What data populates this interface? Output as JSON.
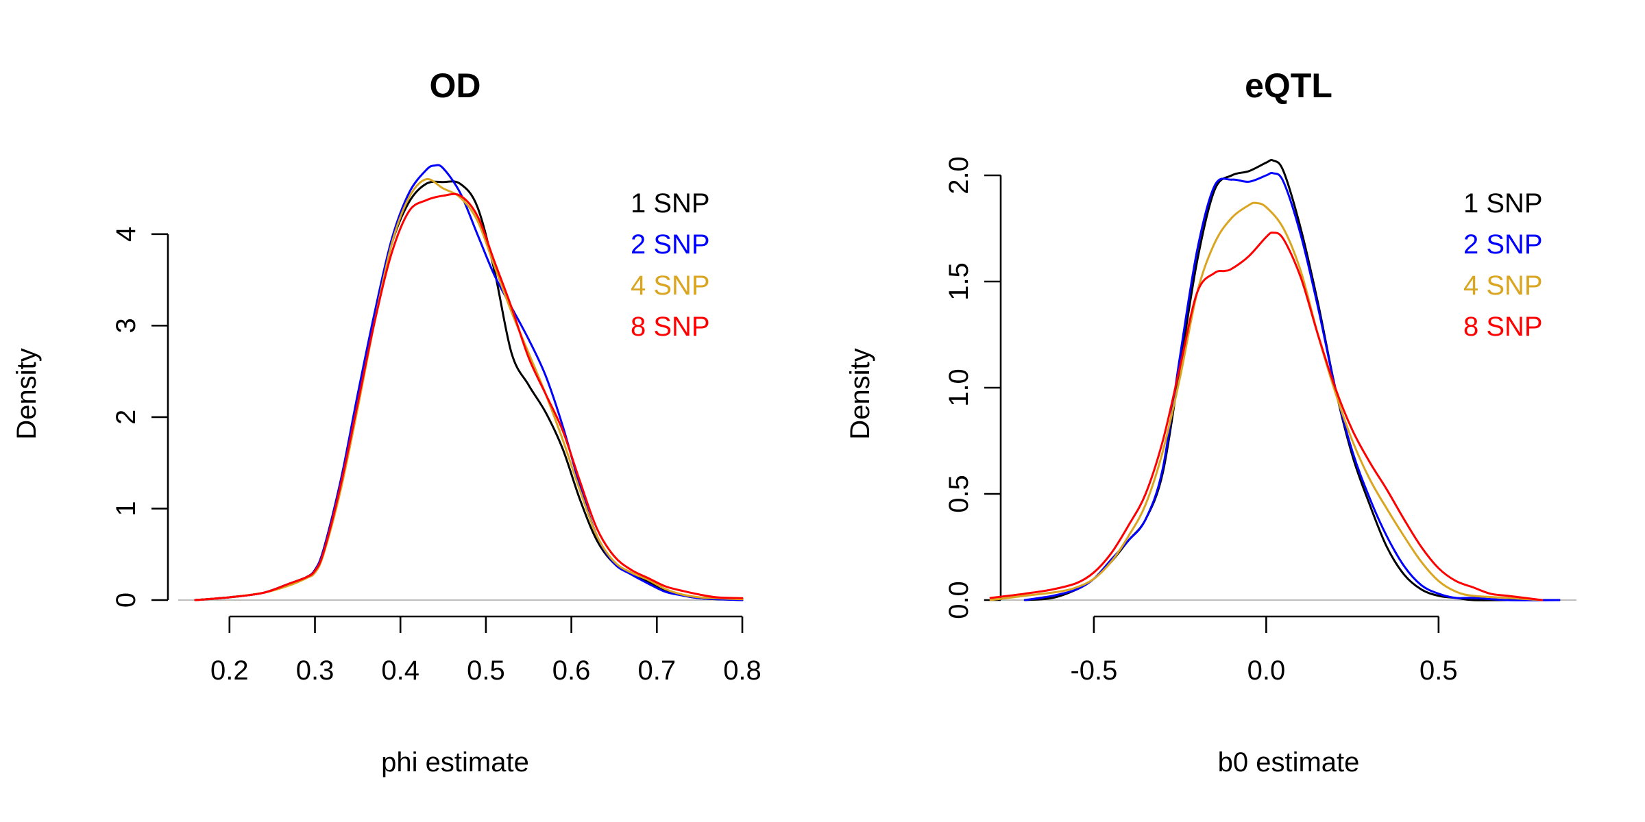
{
  "chart_data": [
    {
      "type": "line",
      "title": "OD",
      "xlabel": "phi estimate",
      "ylabel": "Density",
      "xlim": [
        0.14,
        0.8
      ],
      "ylim": [
        0,
        4.8
      ],
      "xticks": [
        0.2,
        0.3,
        0.4,
        0.5,
        0.6,
        0.7,
        0.8
      ],
      "xtick_labels": [
        "0.2",
        "0.3",
        "0.4",
        "0.5",
        "0.6",
        "0.7",
        "0.8"
      ],
      "yticks": [
        0,
        1,
        2,
        3,
        4
      ],
      "ytick_labels": [
        "0",
        "1",
        "2",
        "3",
        "4"
      ],
      "grid": false,
      "legend_position": "top-right",
      "series": [
        {
          "name": "1 SNP",
          "color": "#000000",
          "x": [
            0.16,
            0.2,
            0.24,
            0.27,
            0.29,
            0.3,
            0.31,
            0.33,
            0.35,
            0.37,
            0.39,
            0.41,
            0.43,
            0.45,
            0.47,
            0.49,
            0.51,
            0.53,
            0.55,
            0.57,
            0.59,
            0.61,
            0.63,
            0.65,
            0.67,
            0.69,
            0.71,
            0.73,
            0.75,
            0.77,
            0.8
          ],
          "y": [
            0.0,
            0.03,
            0.08,
            0.18,
            0.25,
            0.33,
            0.55,
            1.3,
            2.2,
            3.1,
            3.9,
            4.35,
            4.55,
            4.57,
            4.55,
            4.3,
            3.6,
            2.7,
            2.35,
            2.05,
            1.65,
            1.1,
            0.65,
            0.4,
            0.3,
            0.2,
            0.1,
            0.05,
            0.02,
            0.01,
            0.0
          ]
        },
        {
          "name": "2 SNP",
          "color": "#0000ff",
          "x": [
            0.16,
            0.2,
            0.24,
            0.27,
            0.29,
            0.3,
            0.31,
            0.33,
            0.35,
            0.37,
            0.39,
            0.41,
            0.43,
            0.44,
            0.45,
            0.47,
            0.49,
            0.51,
            0.53,
            0.55,
            0.57,
            0.59,
            0.61,
            0.63,
            0.65,
            0.67,
            0.69,
            0.71,
            0.73,
            0.75,
            0.77,
            0.8
          ],
          "y": [
            0.0,
            0.03,
            0.08,
            0.18,
            0.25,
            0.33,
            0.55,
            1.3,
            2.25,
            3.15,
            3.95,
            4.45,
            4.7,
            4.75,
            4.72,
            4.45,
            4.0,
            3.55,
            3.2,
            2.85,
            2.45,
            1.9,
            1.25,
            0.7,
            0.4,
            0.28,
            0.18,
            0.09,
            0.05,
            0.02,
            0.01,
            0.0
          ]
        },
        {
          "name": "4 SNP",
          "color": "#daa520",
          "x": [
            0.16,
            0.2,
            0.24,
            0.27,
            0.29,
            0.3,
            0.31,
            0.33,
            0.35,
            0.37,
            0.39,
            0.41,
            0.43,
            0.45,
            0.47,
            0.49,
            0.51,
            0.53,
            0.55,
            0.57,
            0.59,
            0.61,
            0.63,
            0.65,
            0.67,
            0.69,
            0.71,
            0.73,
            0.75,
            0.77,
            0.8
          ],
          "y": [
            0.0,
            0.03,
            0.08,
            0.16,
            0.24,
            0.3,
            0.5,
            1.2,
            2.1,
            3.05,
            3.9,
            4.4,
            4.6,
            4.5,
            4.4,
            4.15,
            3.65,
            3.15,
            2.7,
            2.25,
            1.75,
            1.2,
            0.7,
            0.42,
            0.3,
            0.22,
            0.12,
            0.06,
            0.03,
            0.02,
            0.01
          ]
        },
        {
          "name": "8 SNP",
          "color": "#ff0000",
          "x": [
            0.16,
            0.2,
            0.24,
            0.27,
            0.29,
            0.3,
            0.31,
            0.33,
            0.35,
            0.37,
            0.39,
            0.41,
            0.43,
            0.45,
            0.47,
            0.49,
            0.51,
            0.53,
            0.55,
            0.57,
            0.59,
            0.61,
            0.63,
            0.65,
            0.67,
            0.69,
            0.71,
            0.73,
            0.75,
            0.77,
            0.8
          ],
          "y": [
            0.0,
            0.03,
            0.08,
            0.18,
            0.25,
            0.32,
            0.52,
            1.25,
            2.15,
            3.05,
            3.8,
            4.25,
            4.37,
            4.42,
            4.42,
            4.2,
            3.7,
            3.2,
            2.65,
            2.25,
            1.85,
            1.3,
            0.78,
            0.48,
            0.33,
            0.24,
            0.15,
            0.1,
            0.06,
            0.03,
            0.02
          ]
        }
      ]
    },
    {
      "type": "line",
      "title": "eQTL",
      "xlabel": "b0 estimate",
      "ylabel": "Density",
      "xlim": [
        -0.82,
        0.9
      ],
      "ylim": [
        0,
        2.1
      ],
      "xticks": [
        -0.5,
        0.0,
        0.5
      ],
      "xtick_labels": [
        "-0.5",
        "0.0",
        "0.5"
      ],
      "yticks": [
        0.0,
        0.5,
        1.0,
        1.5,
        2.0
      ],
      "ytick_labels": [
        "0.0",
        "0.5",
        "1.0",
        "1.5",
        "2.0"
      ],
      "grid": false,
      "legend_position": "top-right",
      "series": [
        {
          "name": "1 SNP",
          "color": "#000000",
          "x": [
            -0.7,
            -0.62,
            -0.55,
            -0.5,
            -0.45,
            -0.4,
            -0.35,
            -0.3,
            -0.25,
            -0.2,
            -0.15,
            -0.1,
            -0.05,
            0.0,
            0.02,
            0.05,
            0.1,
            0.15,
            0.2,
            0.25,
            0.3,
            0.35,
            0.4,
            0.45,
            0.5,
            0.55,
            0.6,
            0.7,
            0.85
          ],
          "y": [
            0.0,
            0.01,
            0.05,
            0.1,
            0.18,
            0.28,
            0.38,
            0.6,
            1.1,
            1.6,
            1.93,
            2.0,
            2.02,
            2.06,
            2.07,
            2.02,
            1.75,
            1.4,
            1.0,
            0.68,
            0.45,
            0.25,
            0.12,
            0.05,
            0.02,
            0.01,
            0.0,
            0.0,
            0.0
          ]
        },
        {
          "name": "2 SNP",
          "color": "#0000ff",
          "x": [
            -0.7,
            -0.62,
            -0.55,
            -0.5,
            -0.45,
            -0.4,
            -0.35,
            -0.3,
            -0.25,
            -0.2,
            -0.15,
            -0.1,
            -0.05,
            0.0,
            0.02,
            0.05,
            0.1,
            0.15,
            0.2,
            0.25,
            0.3,
            0.35,
            0.4,
            0.45,
            0.5,
            0.55,
            0.6,
            0.7,
            0.85
          ],
          "y": [
            0.0,
            0.02,
            0.05,
            0.1,
            0.19,
            0.28,
            0.38,
            0.62,
            1.15,
            1.65,
            1.95,
            1.98,
            1.97,
            2.0,
            2.01,
            1.97,
            1.72,
            1.38,
            1.0,
            0.7,
            0.48,
            0.3,
            0.16,
            0.07,
            0.03,
            0.01,
            0.01,
            0.0,
            0.0
          ]
        },
        {
          "name": "4 SNP",
          "color": "#daa520",
          "x": [
            -0.8,
            -0.7,
            -0.6,
            -0.55,
            -0.5,
            -0.45,
            -0.4,
            -0.35,
            -0.3,
            -0.25,
            -0.2,
            -0.15,
            -0.1,
            -0.05,
            -0.03,
            0.0,
            0.05,
            0.1,
            0.15,
            0.2,
            0.25,
            0.3,
            0.35,
            0.4,
            0.45,
            0.5,
            0.55,
            0.6,
            0.7,
            0.8
          ],
          "y": [
            0.0,
            0.02,
            0.04,
            0.06,
            0.1,
            0.18,
            0.3,
            0.45,
            0.7,
            1.05,
            1.45,
            1.68,
            1.8,
            1.86,
            1.87,
            1.85,
            1.75,
            1.55,
            1.25,
            0.98,
            0.75,
            0.57,
            0.43,
            0.3,
            0.18,
            0.09,
            0.04,
            0.02,
            0.01,
            0.0
          ]
        },
        {
          "name": "8 SNP",
          "color": "#ff0000",
          "x": [
            -0.8,
            -0.7,
            -0.62,
            -0.55,
            -0.5,
            -0.45,
            -0.4,
            -0.35,
            -0.3,
            -0.25,
            -0.2,
            -0.15,
            -0.12,
            -0.1,
            -0.05,
            0.0,
            0.02,
            0.05,
            0.1,
            0.15,
            0.2,
            0.25,
            0.3,
            0.35,
            0.4,
            0.45,
            0.5,
            0.55,
            0.6,
            0.65,
            0.7,
            0.8
          ],
          "y": [
            0.01,
            0.03,
            0.05,
            0.08,
            0.13,
            0.22,
            0.35,
            0.5,
            0.75,
            1.1,
            1.45,
            1.54,
            1.55,
            1.56,
            1.62,
            1.71,
            1.73,
            1.7,
            1.52,
            1.25,
            1.0,
            0.8,
            0.65,
            0.52,
            0.38,
            0.25,
            0.15,
            0.09,
            0.06,
            0.03,
            0.02,
            0.0
          ]
        }
      ]
    }
  ]
}
